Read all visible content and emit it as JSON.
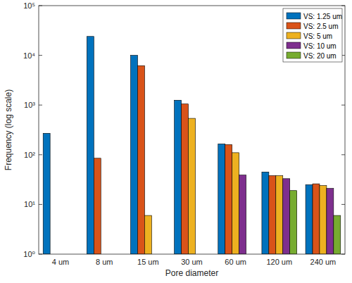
{
  "chart_data": {
    "type": "bar",
    "x_label": "Pore diameter",
    "y_label": "Frequency (log scale)",
    "categories": [
      "4 um",
      "8 um",
      "15 um",
      "30 um",
      "60 um",
      "120 um",
      "240 um"
    ],
    "series": [
      {
        "name": "VS: 1.25 um",
        "color": "#0072bd",
        "values": [
          270,
          24000,
          10000,
          1250,
          165,
          45,
          25
        ]
      },
      {
        "name": "VS: 2.5 um",
        "color": "#d95319",
        "values": [
          null,
          85,
          6200,
          1050,
          160,
          38,
          26
        ]
      },
      {
        "name": "VS: 5 um",
        "color": "#edb120",
        "values": [
          null,
          null,
          6,
          540,
          110,
          38,
          24
        ]
      },
      {
        "name": "VS: 10 um",
        "color": "#7e2f8e",
        "values": [
          null,
          null,
          null,
          null,
          39,
          33,
          21
        ]
      },
      {
        "name": "VS: 20 um",
        "color": "#77ac30",
        "values": [
          null,
          null,
          null,
          null,
          null,
          19,
          6
        ]
      }
    ],
    "ylim": [
      1,
      100000
    ],
    "yticks": [
      {
        "value": 1,
        "label": "10⁰"
      },
      {
        "value": 10,
        "label": "10¹"
      },
      {
        "value": 100,
        "label": "10²"
      },
      {
        "value": 1000,
        "label": "10³"
      },
      {
        "value": 10000,
        "label": "10⁴"
      },
      {
        "value": 100000,
        "label": "10⁵"
      }
    ],
    "log": "y",
    "grid": false,
    "legend": "northeast"
  }
}
